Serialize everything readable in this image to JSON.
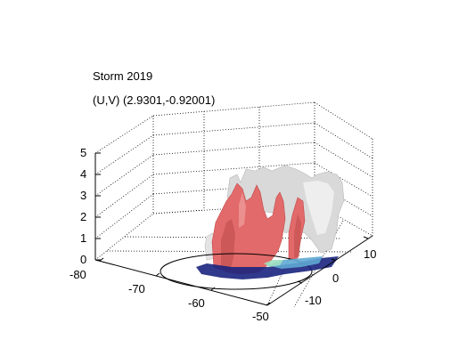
{
  "chart_data": {
    "type": "surface3d",
    "title": "Storm 2019",
    "subtitle": "(U,V) (2.9301,-0.92001)",
    "xlabel": "",
    "ylabel": "",
    "zlabel": "",
    "x_ticks": [
      "-80",
      "-70",
      "-60",
      "-50"
    ],
    "y_ticks": [
      "-10",
      "0",
      "10"
    ],
    "z_ticks": [
      "0",
      "1",
      "2",
      "3",
      "4",
      "5"
    ],
    "xlim": [
      -80,
      -50
    ],
    "ylim": [
      -15,
      15
    ],
    "zlim": [
      0,
      5
    ],
    "grid": true,
    "colors": {
      "isosurface_high": "#e36a6a",
      "isosurface_low": "#d7d7d7",
      "slice_dark": "#1a237e",
      "slice_mid": "#5fa8d3",
      "slice_light": "#9ee0c0"
    }
  }
}
